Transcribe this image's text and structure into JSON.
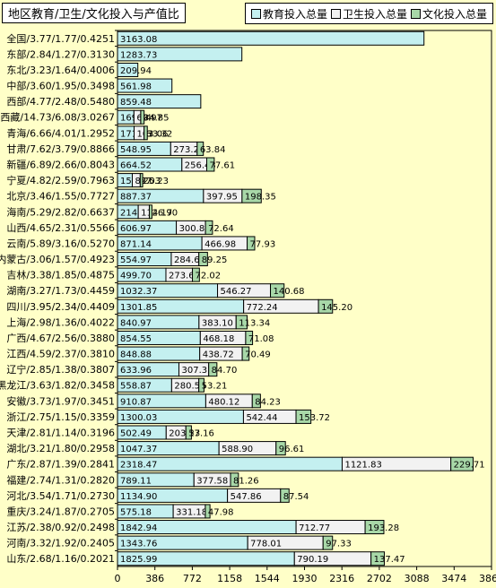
{
  "chart_data": {
    "type": "bar",
    "orientation": "horizontal",
    "stacked": true,
    "title": "地区教育/卫生/文化投入与产值比",
    "categories": [
      "全国/3.77/1.77/0.4251",
      "东部/2.84/1.27/0.3130",
      "东北/3.23/1.64/0.4006",
      "中部/3.60/1.95/0.3498",
      "西部/4.77/2.48/0.5480",
      "西藏/14.73/6.08/3.0267",
      "青海/6.66/4.01/1.2952",
      "甘肃/7.62/3.79/0.8866",
      "新疆/6.89/2.66/0.8043",
      "宁夏/4.82/2.59/0.7963",
      "北京/3.46/1.55/0.7727",
      "海南/5.29/2.82/0.6637",
      "山西/4.65/2.31/0.5566",
      "云南/5.89/3.16/0.5270",
      "内蒙古/3.06/1.57/0.4923",
      "吉林/3.38/1.85/0.4875",
      "湖南/3.27/1.73/0.4459",
      "四川/3.95/2.34/0.4409",
      "上海/2.98/1.36/0.4022",
      "广西/4.67/2.56/0.3880",
      "江西/4.59/2.37/0.3810",
      "辽宁/2.85/1.38/0.3807",
      "黑龙江/3.63/1.82/0.3458",
      "安徽/3.73/1.97/0.3451",
      "浙江/2.75/1.15/0.3359",
      "天津/2.81/1.14/0.3196",
      "湖北/3.21/1.80/0.2958",
      "广东/2.87/1.39/0.2841",
      "福建/2.74/1.31/0.2820",
      "河北/3.54/1.71/0.2730",
      "重庆/3.24/1.87/0.2705",
      "江苏/2.38/0.92/0.2498",
      "河南/3.32/1.92/0.2405",
      "山东/2.68/1.16/0.2021"
    ],
    "series": [
      {
        "name": "教育投入总量",
        "color": "#c4f0f0",
        "values": [
          3163.08,
          1283.73,
          209.94,
          561.98,
          859.48,
          169.84,
          171.36,
          548.95,
          664.52,
          152.57,
          887.37,
          214.24,
          606.97,
          871.14,
          554.97,
          499.7,
          1032.37,
          1301.85,
          840.97,
          854.55,
          848.88,
          633.96,
          558.87,
          910.87,
          1300.03,
          502.49,
          1047.37,
          2318.47,
          789.11,
          1134.9,
          575.18,
          1842.94,
          1343.76,
          1825.99
        ]
      },
      {
        "name": "卫生投入总量",
        "color": "#f2f2f2",
        "values": [
          null,
          null,
          null,
          null,
          null,
          69.97,
          103.06,
          273.25,
          256.43,
          82.03,
          397.95,
          114.17,
          300.86,
          466.98,
          284.63,
          273.62,
          546.27,
          772.24,
          383.1,
          468.18,
          438.72,
          307.31,
          280.56,
          480.12,
          542.44,
          203.23,
          588.9,
          1121.83,
          377.58,
          547.86,
          331.18,
          712.77,
          778.01,
          790.19
        ]
      },
      {
        "name": "文化投入总量",
        "color": "#a8d8a8",
        "values": [
          null,
          null,
          null,
          null,
          null,
          34.85,
          33.32,
          63.84,
          77.61,
          25.23,
          198.35,
          26.9,
          72.64,
          77.93,
          89.25,
          72.02,
          140.68,
          145.2,
          113.34,
          71.08,
          70.49,
          84.7,
          53.21,
          84.23,
          153.72,
          57.16,
          96.61,
          229.71,
          81.26,
          87.54,
          47.98,
          193.28,
          97.33,
          137.47
        ]
      }
    ],
    "xlim": [
      0,
      3860
    ],
    "xticks": [
      0,
      386,
      772,
      1158,
      1544,
      1930,
      2316,
      2702,
      3088,
      3474,
      3860
    ],
    "grid": false,
    "legend_position": "top-right"
  }
}
